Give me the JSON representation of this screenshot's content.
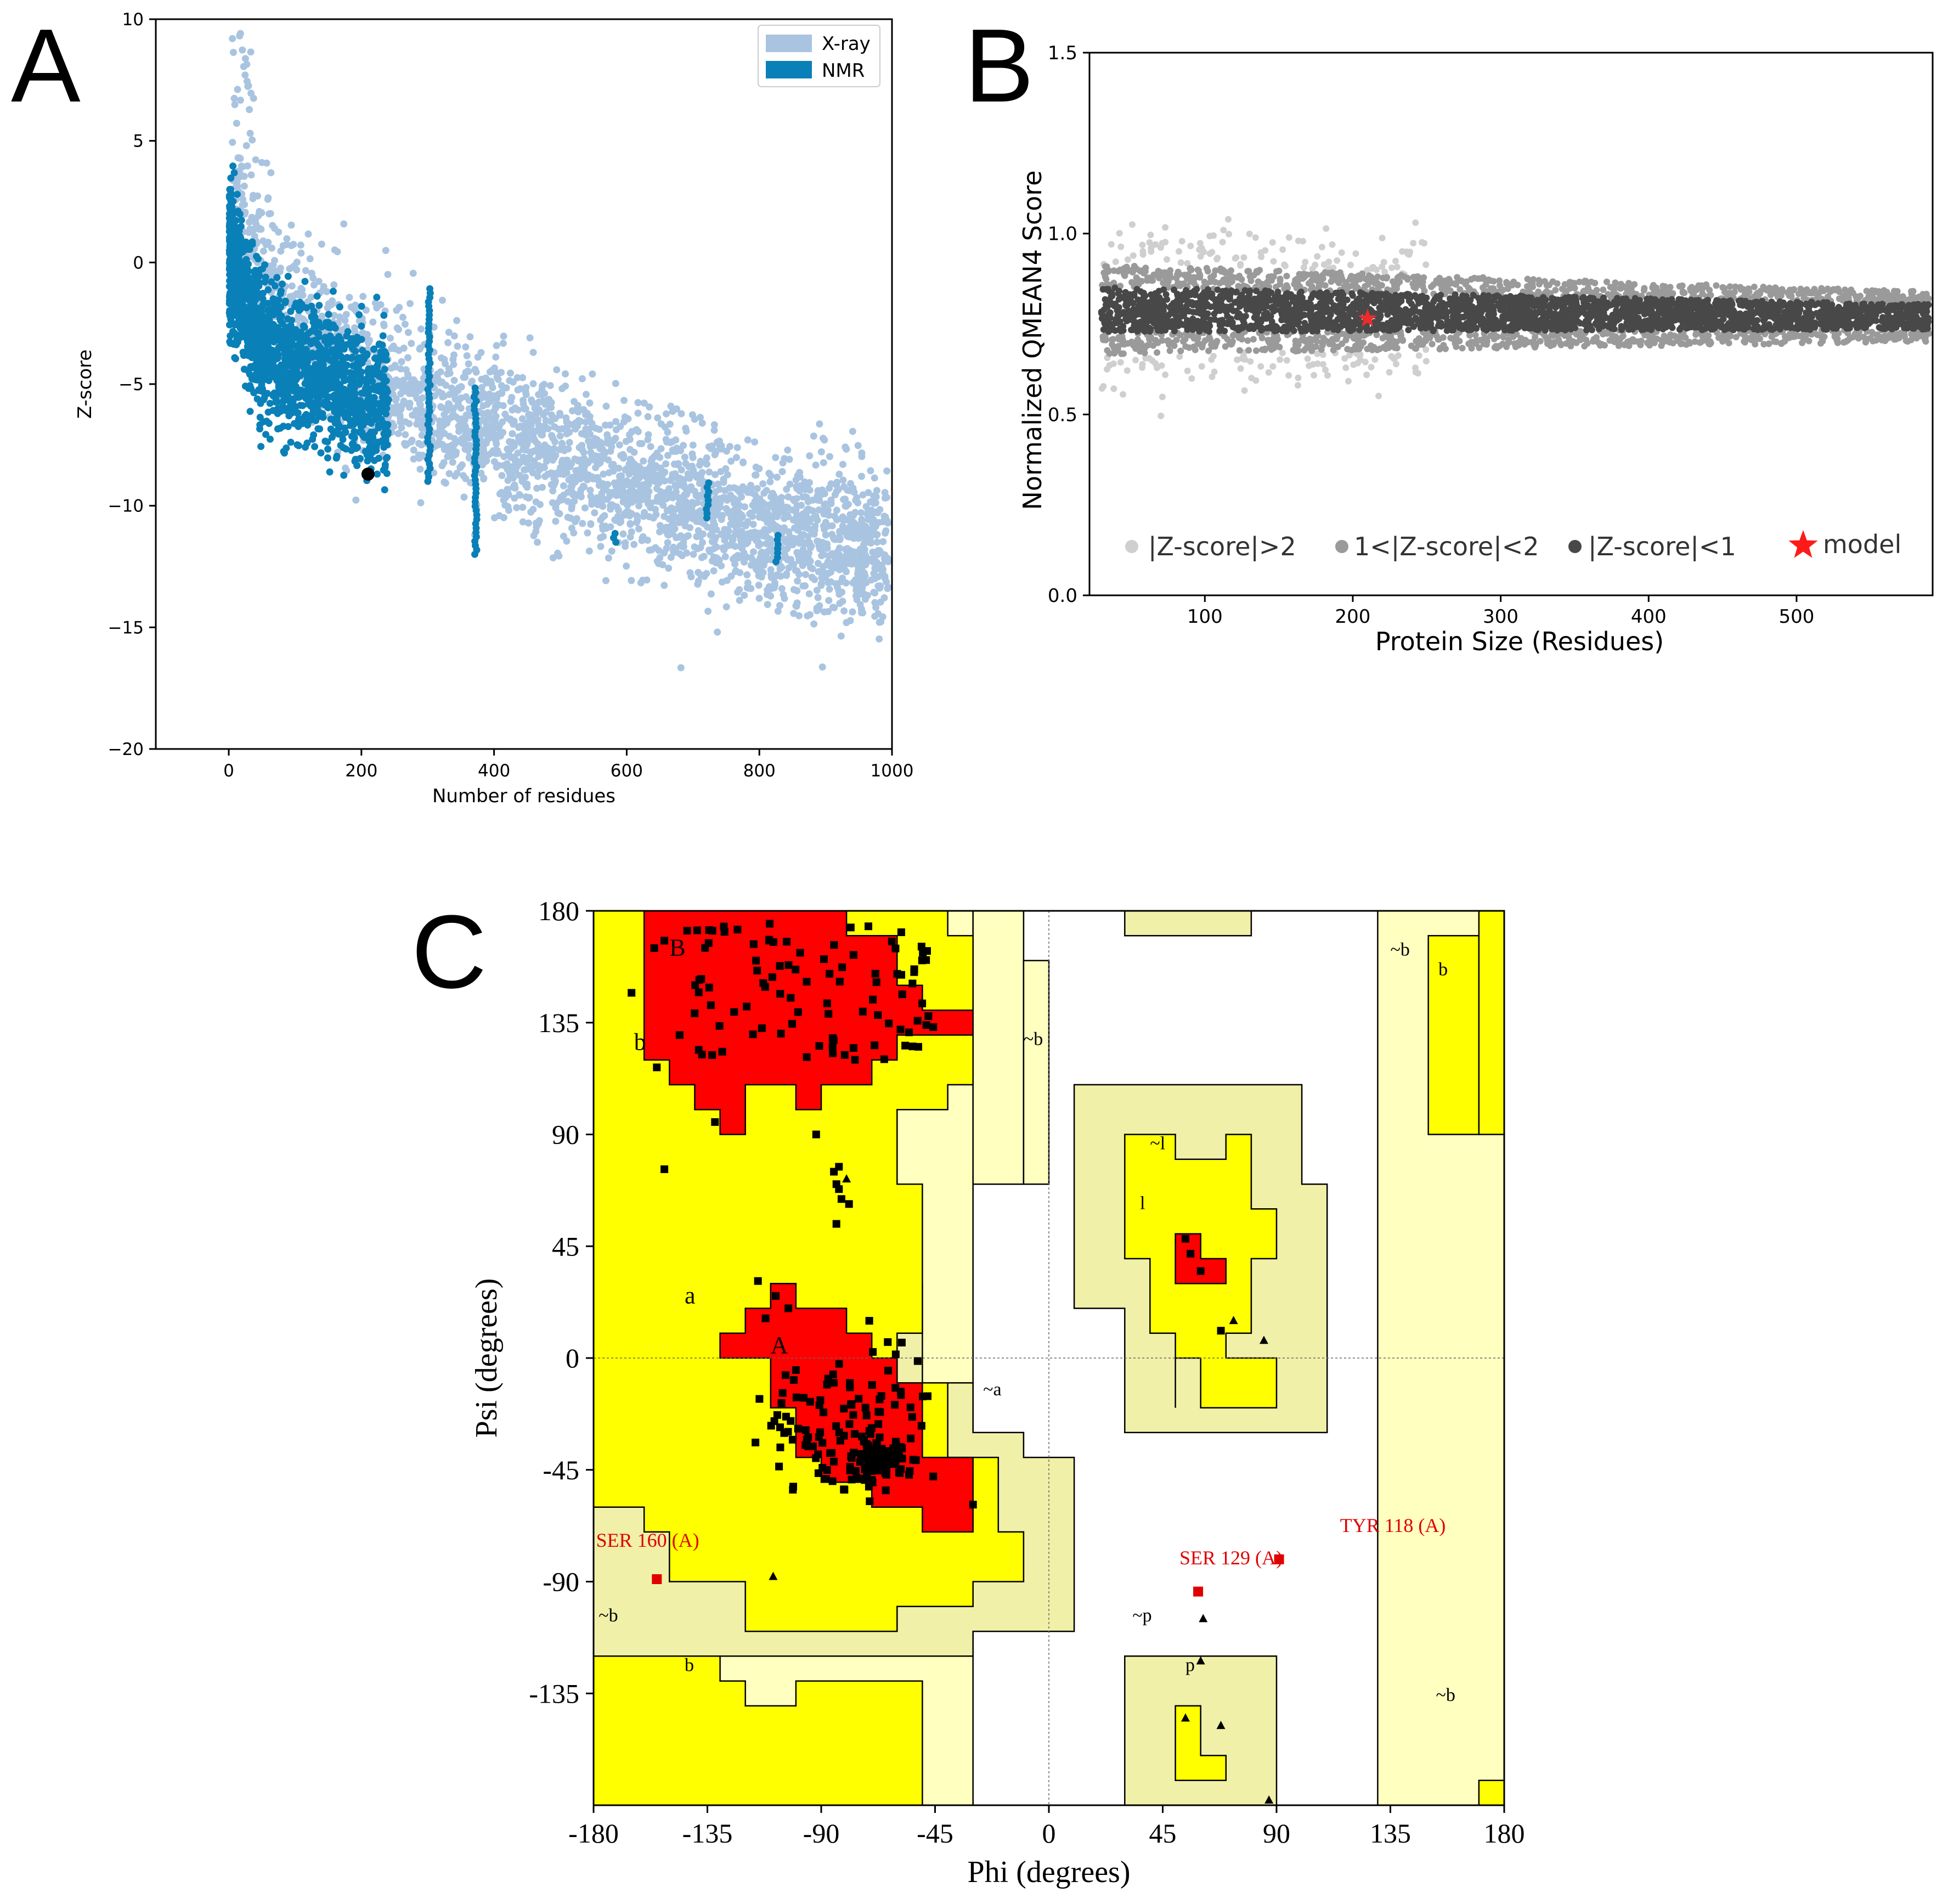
{
  "panels": {
    "a": "A",
    "b": "B",
    "c": "C"
  },
  "colors": {
    "xray": "#a9c4e0",
    "nmr": "#0a80b8",
    "model_a": "#000000",
    "z_gt2": "#cfcfcf",
    "z_1_2": "#9a9a9a",
    "z_lt1": "#484848",
    "model_b": "#ee2a2a",
    "core": "#ff0000",
    "allowed": "#ffff00",
    "generous": "#f0f0a8",
    "pale": "#ffffc0",
    "outlier": "#e00000"
  },
  "chart_data": [
    {
      "type": "scatter",
      "panel": "A",
      "xlabel": "Number of residues",
      "ylabel": "Z-score",
      "xlim": [
        -110,
        1000
      ],
      "ylim": [
        -20,
        10
      ],
      "xticks": [
        "0",
        "200",
        "400",
        "600",
        "800",
        "1000"
      ],
      "yticks": [
        "10",
        "5",
        "0",
        "−5",
        "−10",
        "−15",
        "−20"
      ],
      "legend": {
        "position": "top-right",
        "entries": [
          "X-ray",
          "NMR"
        ]
      },
      "series": [
        {
          "name": "X-ray",
          "trend": [
            [
              10,
              2
            ],
            [
              100,
              -2.5
            ],
            [
              200,
              -4.5
            ],
            [
              400,
              -7
            ],
            [
              600,
              -9
            ],
            [
              800,
              -11
            ],
            [
              1000,
              -12
            ]
          ],
          "spread": 2.8
        },
        {
          "name": "NMR",
          "trend": [
            [
              5,
              0
            ],
            [
              50,
              -3.5
            ],
            [
              150,
              -5
            ],
            [
              300,
              -7
            ]
          ],
          "spread": 2.4
        }
      ],
      "model": [
        210,
        -8.7
      ]
    },
    {
      "type": "scatter",
      "panel": "B",
      "xlabel": "Protein Size (Residues)",
      "ylabel": "Normalized QMEAN4 Score",
      "xlim": [
        22,
        592
      ],
      "ylim": [
        0.0,
        1.5
      ],
      "xticks": [
        "100",
        "200",
        "300",
        "400",
        "500"
      ],
      "yticks": [
        "1.5",
        "1.0",
        "0.5",
        "0.0"
      ],
      "legend": {
        "position": "bottom",
        "entries": [
          "|Z-score|>2",
          "1<|Z-score|<2",
          "|Z-score|<1",
          "model"
        ]
      },
      "trend": [
        [
          30,
          0.79
        ],
        [
          590,
          0.77
        ]
      ],
      "model": [
        210,
        0.765
      ]
    },
    {
      "type": "scatter",
      "panel": "C",
      "xlabel": "Phi (degrees)",
      "ylabel": "Psi (degrees)",
      "xlim": [
        -180,
        180
      ],
      "ylim": [
        -180,
        180
      ],
      "xticks": [
        "-180",
        "-135",
        "-90",
        "-45",
        "0",
        "45",
        "90",
        "135",
        "180"
      ],
      "yticks": [
        "180",
        "135",
        "90",
        "45",
        "0",
        "-45",
        "-90",
        "-135"
      ],
      "region_labels": [
        "B",
        "b",
        "~b",
        "~b",
        "b",
        "~l",
        "l",
        "a",
        "A",
        "~a",
        "~b",
        "b",
        "~p",
        "p",
        "~b"
      ],
      "outliers": [
        {
          "label": "TYR 118 (A)",
          "phi": 91,
          "psi": -81
        },
        {
          "label": "SER 129 (A)",
          "phi": 59,
          "psi": -94
        },
        {
          "label": "SER 160 (A)",
          "phi": -155,
          "psi": -89
        }
      ]
    }
  ]
}
